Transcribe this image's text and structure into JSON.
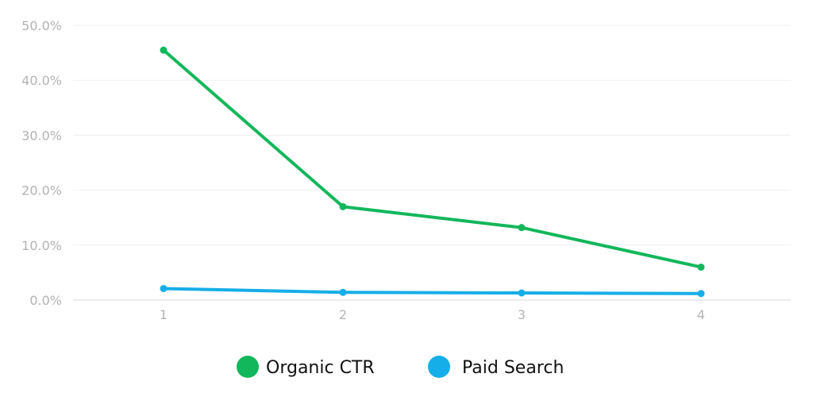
{
  "chart_data": {
    "type": "line",
    "x": [
      1,
      2,
      3,
      4
    ],
    "xticks": [
      "1",
      "2",
      "3",
      "4"
    ],
    "yticks": [
      "0.0%",
      "10.0%",
      "20.0%",
      "30.0%",
      "40.0%",
      "50.0%"
    ],
    "ylim": [
      0,
      50
    ],
    "grid": true,
    "legend_position": "bottom-center",
    "series": [
      {
        "name": "Organic CTR",
        "color": "#12b75b",
        "values": [
          45.5,
          17.0,
          13.2,
          6.0
        ]
      },
      {
        "name": "Paid Search",
        "color": "#16aee8",
        "values": [
          2.1,
          1.4,
          1.3,
          1.2
        ]
      }
    ]
  }
}
